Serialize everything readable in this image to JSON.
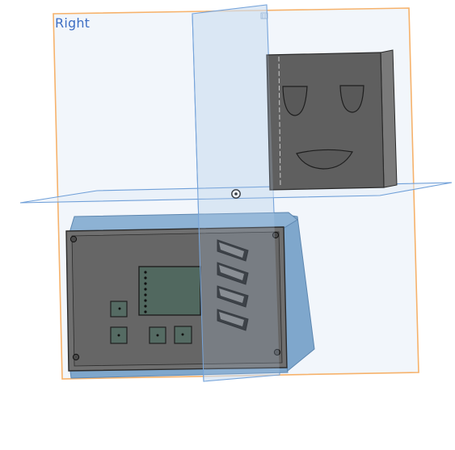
{
  "view": {
    "active_plane_label": "Right"
  },
  "colors": {
    "right_plane_fill": "#f2f6fb",
    "right_plane_border": "#f6b26b",
    "plane_blue_border": "#6f9fd8",
    "top_plane_fill": "#e3ecf7",
    "front_plane_fill": "#d7e5f4",
    "part_body": "#5f5f5f",
    "part_face": "#666666",
    "part_edge": "#2b2b2b",
    "enclosure_blue": "#7fa7cc",
    "enclosure_blue_dark": "#5e87b0",
    "screen_green": "#51685f",
    "button_green": "#556b63",
    "label_blue": "#3f6fc4"
  },
  "icons": {
    "origin": "origin-icon",
    "plane_marker": "plane-marker-icon"
  }
}
